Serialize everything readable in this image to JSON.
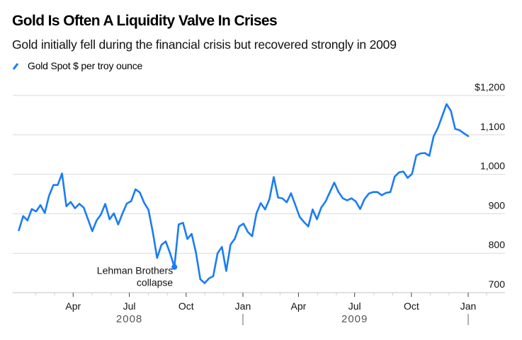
{
  "header": {
    "title": "Gold Is Often A Liquidity Valve In Crises",
    "subtitle": "Gold initially fell during the financial crisis but recovered strongly in 2009"
  },
  "legend": {
    "items": [
      {
        "label": "Gold Spot $ per troy ounce",
        "color": "#1a7cf5",
        "icon": "line-swatch-icon"
      }
    ]
  },
  "chart_data": {
    "type": "line",
    "title": "Gold Is Often A Liquidity Valve In Crises",
    "subtitle": "Gold initially fell during the financial crisis but recovered strongly in 2009",
    "xlabel": "",
    "ylabel": "Gold Spot $ per troy ounce",
    "frequency": "weekly",
    "x_start": "2008-01-04",
    "x_range": [
      "2008-01-01",
      "2010-02-05"
    ],
    "ylim": [
      700,
      1200
    ],
    "y_ticks": [
      {
        "value": 1200,
        "label": "$1,200"
      },
      {
        "value": 1100,
        "label": "1,100"
      },
      {
        "value": 1000,
        "label": "1,000"
      },
      {
        "value": 900,
        "label": "900"
      },
      {
        "value": 800,
        "label": "800"
      },
      {
        "value": 700,
        "label": "700"
      }
    ],
    "x_ticks": [
      {
        "date": "2008-04-01",
        "label": "Apr"
      },
      {
        "date": "2008-07-01",
        "label": "Jul"
      },
      {
        "date": "2008-10-01",
        "label": "Oct"
      },
      {
        "date": "2009-01-01",
        "label": "Jan"
      },
      {
        "date": "2009-04-01",
        "label": "Apr"
      },
      {
        "date": "2009-07-01",
        "label": "Jul"
      },
      {
        "date": "2009-10-01",
        "label": "Oct"
      },
      {
        "date": "2010-01-01",
        "label": "Jan"
      }
    ],
    "x_minor_ticks_monthly": true,
    "year_labels": [
      {
        "label": "2008",
        "center_date": "2008-07-01"
      },
      {
        "label": "2009",
        "center_date": "2009-07-01"
      }
    ],
    "year_dividers": [
      "2009-01-01",
      "2010-01-01"
    ],
    "grid": true,
    "legend_position": "top-left",
    "series": [
      {
        "name": "Gold Spot $ per troy ounce",
        "color": "#1a7cf5",
        "values": [
          858,
          894,
          883,
          912,
          906,
          922,
          902,
          946,
          973,
          973,
          1002,
          919,
          930,
          914,
          925,
          916,
          886,
          856,
          883,
          898,
          925,
          886,
          901,
          873,
          901,
          926,
          932,
          962,
          954,
          928,
          910,
          854,
          788,
          821,
          830,
          800,
          765,
          873,
          877,
          836,
          849,
          801,
          734,
          724,
          736,
          742,
          800,
          816,
          755,
          822,
          837,
          868,
          875,
          854,
          843,
          901,
          927,
          911,
          937,
          993,
          941,
          939,
          929,
          952,
          922,
          892,
          879,
          868,
          911,
          886,
          916,
          931,
          955,
          979,
          955,
          939,
          934,
          939,
          931,
          912,
          937,
          951,
          955,
          955,
          947,
          953,
          955,
          994,
          1005,
          1007,
          991,
          1001,
          1048,
          1053,
          1054,
          1047,
          1096,
          1118,
          1148,
          1178,
          1161,
          1115,
          1112,
          1104,
          1097
        ]
      }
    ],
    "annotations": [
      {
        "text_lines": [
          "Lehman Brothers",
          "collapse"
        ],
        "point_index": 36,
        "value": 765,
        "marker": "dot"
      }
    ]
  }
}
